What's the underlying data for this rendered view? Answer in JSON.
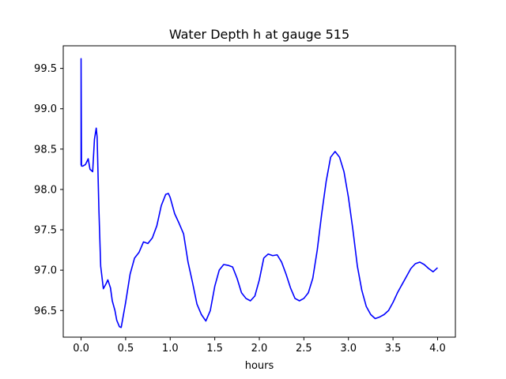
{
  "chart_data": {
    "type": "line",
    "title": "Water Depth h at gauge 515",
    "xlabel": "hours",
    "ylabel": "",
    "xlim": [
      -0.2,
      4.2
    ],
    "ylim": [
      96.17,
      99.78
    ],
    "xticks": [
      0.0,
      0.5,
      1.0,
      1.5,
      2.0,
      2.5,
      3.0,
      3.5,
      4.0
    ],
    "xtick_labels": [
      "0.0",
      "0.5",
      "1.0",
      "1.5",
      "2.0",
      "2.5",
      "3.0",
      "3.5",
      "4.0"
    ],
    "yticks": [
      96.5,
      97.0,
      97.5,
      98.0,
      98.5,
      99.0,
      99.5
    ],
    "ytick_labels": [
      "96.5",
      "97.0",
      "97.5",
      "98.0",
      "98.5",
      "99.0",
      "99.5"
    ],
    "grid": false,
    "series": [
      {
        "color": "#0000ff",
        "x": [
          0.0,
          0.0,
          0.005,
          0.02,
          0.05,
          0.08,
          0.1,
          0.13,
          0.15,
          0.17,
          0.18,
          0.2,
          0.22,
          0.25,
          0.28,
          0.3,
          0.33,
          0.35,
          0.38,
          0.4,
          0.43,
          0.45,
          0.5,
          0.55,
          0.6,
          0.65,
          0.7,
          0.75,
          0.8,
          0.85,
          0.9,
          0.95,
          0.98,
          1.0,
          1.05,
          1.1,
          1.15,
          1.2,
          1.25,
          1.3,
          1.35,
          1.4,
          1.45,
          1.5,
          1.55,
          1.6,
          1.65,
          1.7,
          1.75,
          1.8,
          1.85,
          1.9,
          1.95,
          2.0,
          2.05,
          2.1,
          2.15,
          2.2,
          2.25,
          2.3,
          2.35,
          2.4,
          2.45,
          2.5,
          2.55,
          2.6,
          2.65,
          2.7,
          2.75,
          2.8,
          2.85,
          2.9,
          2.95,
          3.0,
          3.05,
          3.1,
          3.15,
          3.2,
          3.25,
          3.3,
          3.35,
          3.4,
          3.45,
          3.5,
          3.55,
          3.6,
          3.65,
          3.7,
          3.75,
          3.8,
          3.85,
          3.9,
          3.95,
          4.0
        ],
        "y": [
          98.3,
          99.62,
          98.29,
          98.29,
          98.31,
          98.38,
          98.25,
          98.22,
          98.62,
          98.76,
          98.65,
          97.75,
          97.05,
          96.77,
          96.83,
          96.88,
          96.78,
          96.62,
          96.5,
          96.38,
          96.3,
          96.29,
          96.6,
          96.95,
          97.15,
          97.22,
          97.35,
          97.33,
          97.4,
          97.55,
          97.8,
          97.94,
          97.95,
          97.9,
          97.7,
          97.58,
          97.45,
          97.1,
          96.85,
          96.58,
          96.45,
          96.37,
          96.5,
          96.8,
          97.0,
          97.07,
          97.06,
          97.04,
          96.9,
          96.72,
          96.65,
          96.62,
          96.68,
          96.88,
          97.15,
          97.2,
          97.18,
          97.19,
          97.1,
          96.95,
          96.78,
          96.65,
          96.62,
          96.65,
          96.72,
          96.9,
          97.25,
          97.7,
          98.1,
          98.4,
          98.47,
          98.4,
          98.22,
          97.9,
          97.5,
          97.05,
          96.75,
          96.55,
          96.45,
          96.4,
          96.42,
          96.45,
          96.5,
          96.6,
          96.72,
          96.82,
          96.92,
          97.02,
          97.08,
          97.1,
          97.07,
          97.02,
          96.98,
          97.03
        ]
      }
    ]
  }
}
